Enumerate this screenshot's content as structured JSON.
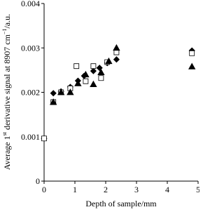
{
  "chart_data": {
    "type": "scatter",
    "ylabel_parts": [
      "Average 1",
      "st",
      " derivative signal at 8907 cm",
      "−1",
      "/a.u."
    ],
    "xlabel": "Depth of sample/mm",
    "xlim": [
      0,
      5
    ],
    "xticks": [
      0,
      1,
      2,
      3,
      4,
      5
    ],
    "ylim": [
      0,
      0.004
    ],
    "yticks": [
      0,
      0.001,
      0.002,
      0.003,
      0.004
    ],
    "series": [
      {
        "marker": "diamond",
        "color": "#000000",
        "filled": true,
        "x": [
          0,
          0.3,
          0.55,
          0.85,
          1.1,
          1.3,
          1.6,
          1.8,
          2.05,
          2.35,
          4.8
        ],
        "values": [
          0.00096,
          0.00198,
          0.00202,
          0.00212,
          0.00226,
          0.00237,
          0.00248,
          0.00255,
          0.00266,
          0.00274,
          0.00294
        ]
      },
      {
        "marker": "square",
        "color": "#000000",
        "filled": false,
        "x": [
          0,
          0.3,
          0.55,
          0.85,
          1.05,
          1.35,
          1.6,
          1.85,
          2.05,
          2.35,
          4.8
        ],
        "values": [
          0.00096,
          0.00178,
          0.002,
          0.00209,
          0.00259,
          0.00225,
          0.00259,
          0.00232,
          0.00268,
          0.0029,
          0.00288
        ]
      },
      {
        "marker": "triangle",
        "color": "#000000",
        "filled": true,
        "x": [
          0.3,
          0.55,
          0.85,
          1.1,
          1.35,
          1.6,
          1.85,
          2.1,
          2.35,
          4.8
        ],
        "values": [
          0.00178,
          0.002,
          0.002,
          0.0022,
          0.0024,
          0.00218,
          0.00245,
          0.0027,
          0.003,
          0.00258
        ]
      }
    ]
  }
}
